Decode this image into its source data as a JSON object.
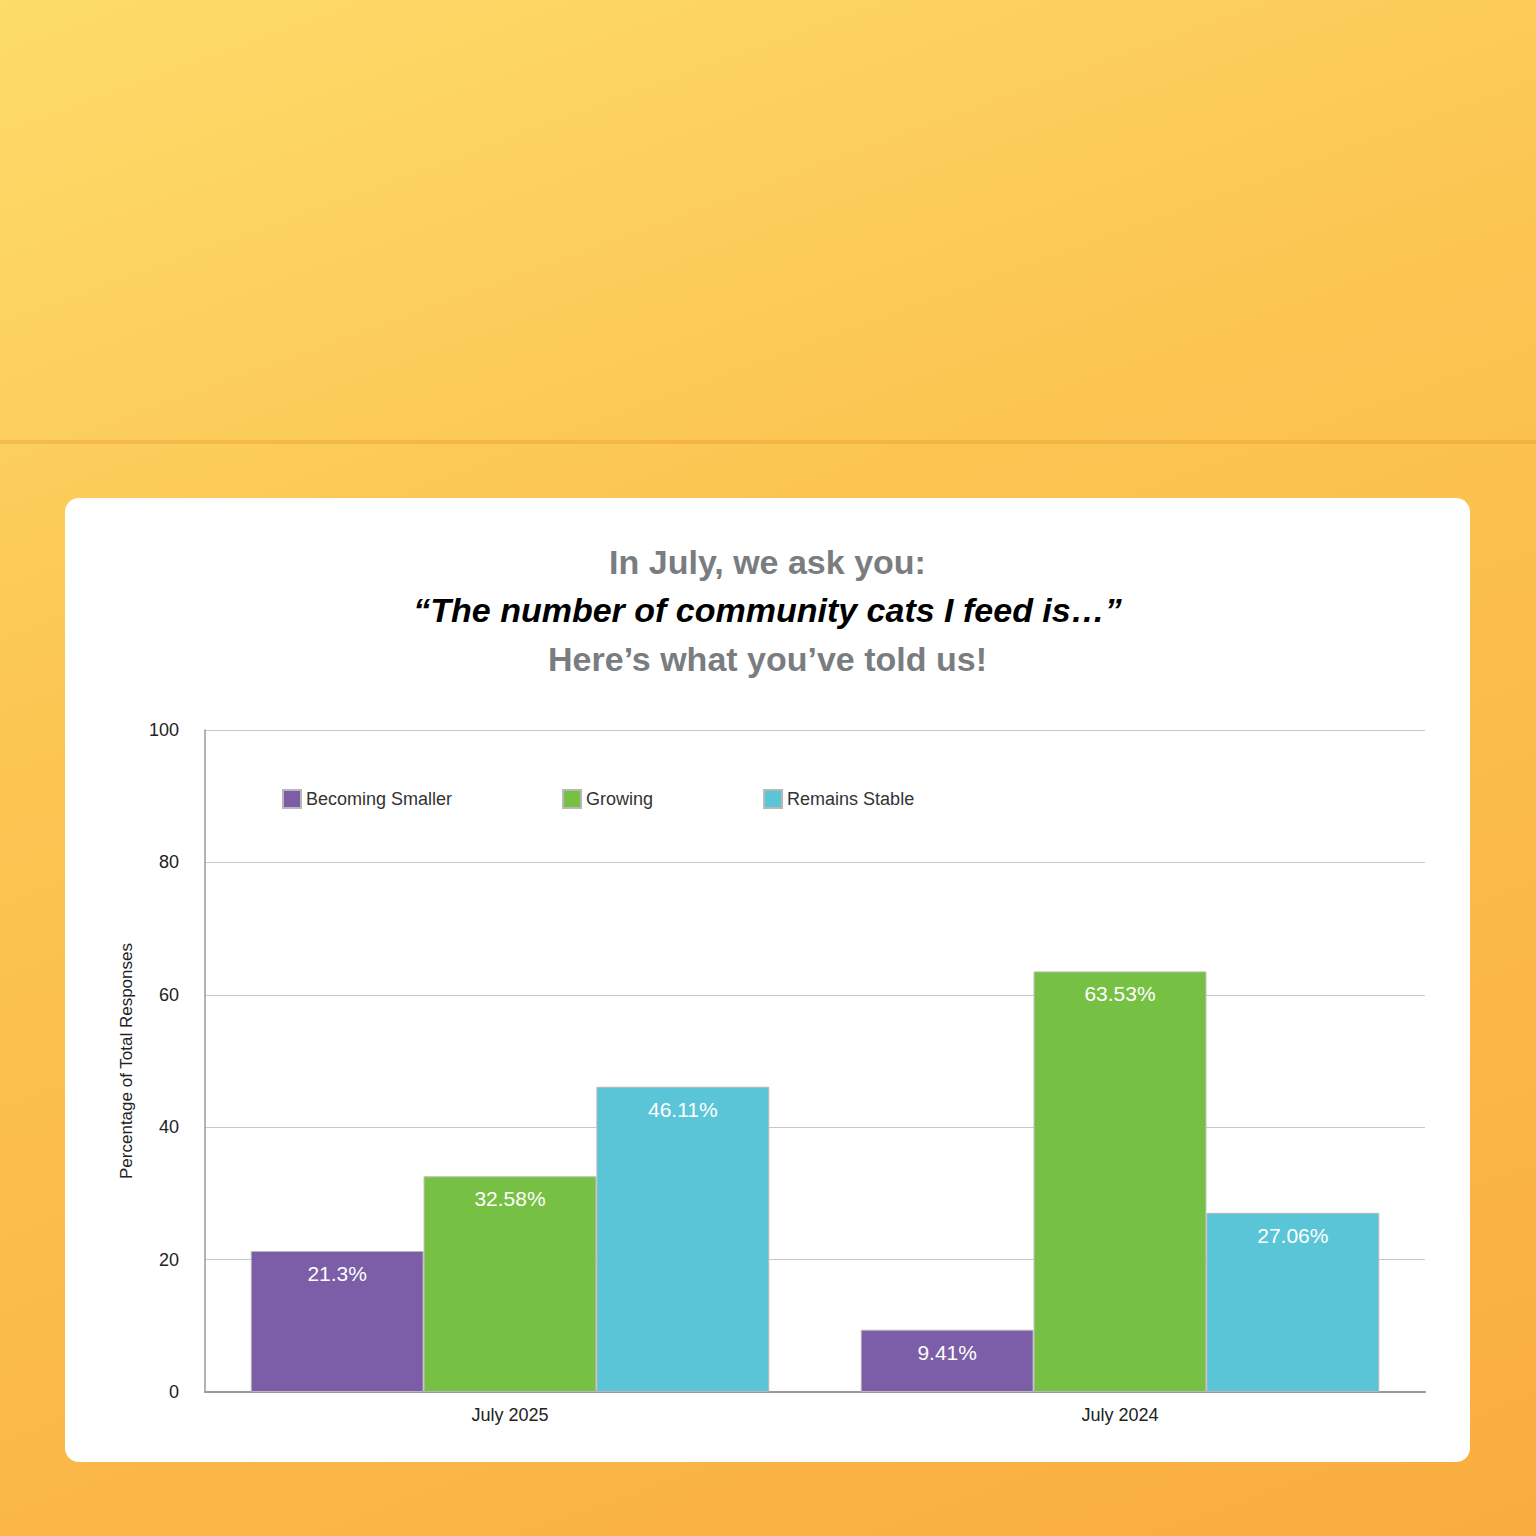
{
  "chart_data": {
    "type": "bar",
    "title": [
      "In July, we ask you:",
      "“The number of community cats I feed is…”",
      "Here’s what you’ve told us!"
    ],
    "y_label": "Percentage of Total Responses",
    "categories": [
      "July 2025",
      "July 2024"
    ],
    "series": [
      {
        "name": "Becoming Smaller",
        "color": "#7b5ea7",
        "values": [
          21.3,
          9.41
        ],
        "value_labels": [
          "21.3%",
          "9.41%"
        ]
      },
      {
        "name": "Growing",
        "color": "#76c043",
        "values": [
          32.58,
          63.53
        ],
        "value_labels": [
          "32.58%",
          "63.53%"
        ]
      },
      {
        "name": "Remains Stable",
        "color": "#5bc5d8",
        "values": [
          46.11,
          27.06
        ],
        "value_labels": [
          "46.11%",
          "27.06%"
        ]
      }
    ],
    "ylim": [
      0,
      100
    ],
    "yticks": [
      0,
      20,
      40,
      60,
      80,
      100
    ],
    "grid": true,
    "legend": "top-left",
    "data_labels": true
  }
}
